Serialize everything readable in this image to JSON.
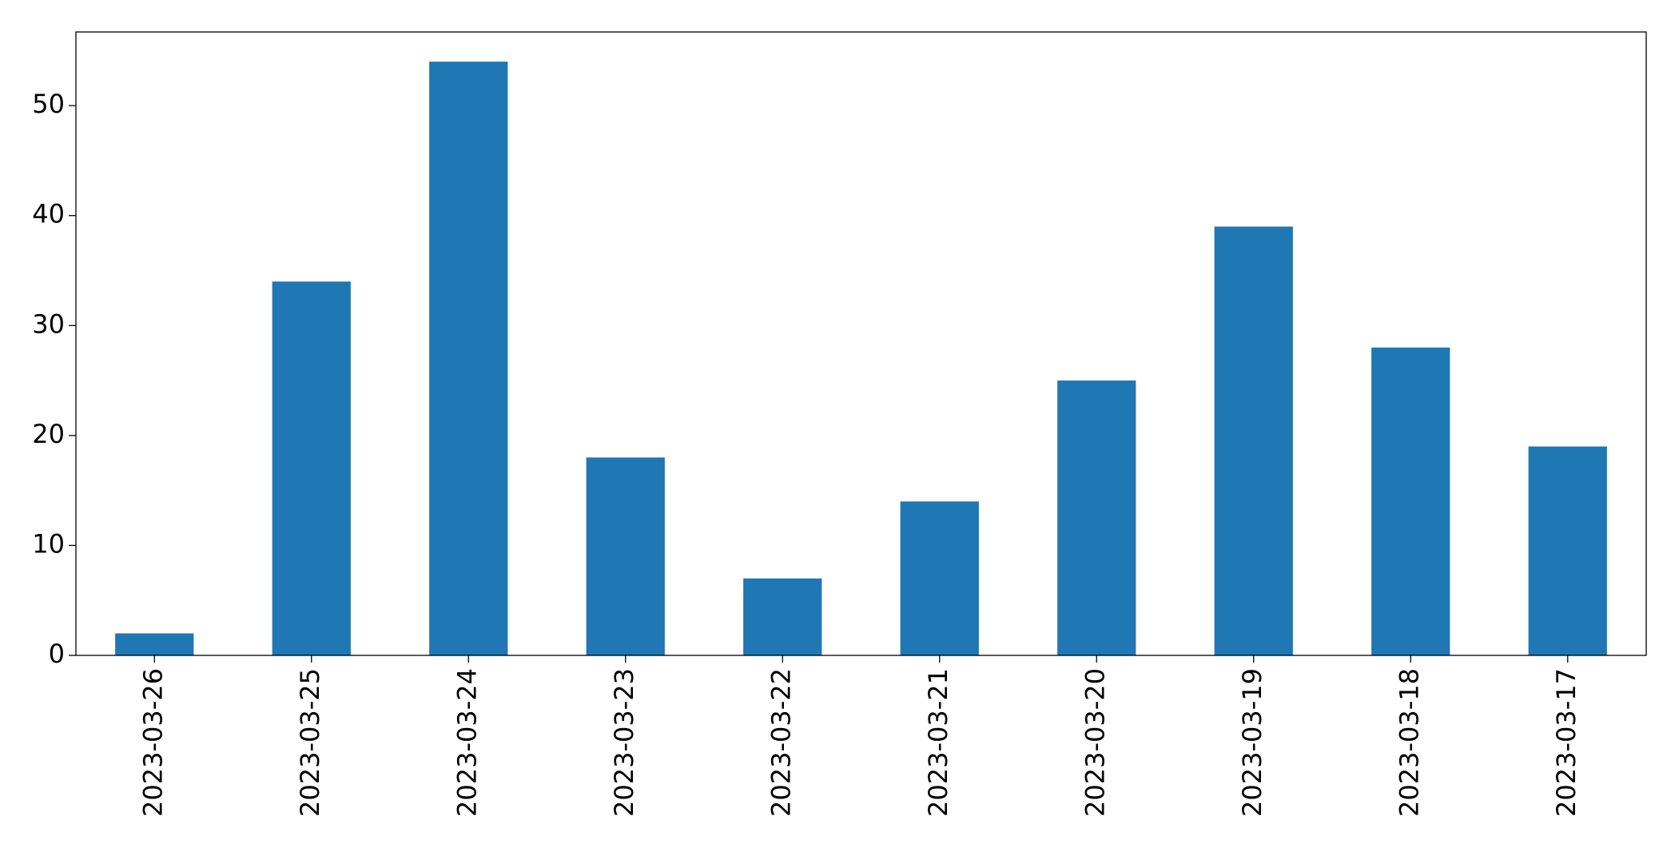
{
  "chart_data": {
    "type": "bar",
    "categories": [
      "2023-03-26",
      "2023-03-25",
      "2023-03-24",
      "2023-03-23",
      "2023-03-22",
      "2023-03-21",
      "2023-03-20",
      "2023-03-19",
      "2023-03-18",
      "2023-03-17"
    ],
    "values": [
      2,
      34,
      54,
      18,
      7,
      14,
      25,
      39,
      28,
      19
    ],
    "color": "#1f77b4",
    "ylim": [
      0,
      56.7
    ],
    "yticks": [
      0,
      10,
      20,
      30,
      40,
      50
    ],
    "grid": false
  }
}
